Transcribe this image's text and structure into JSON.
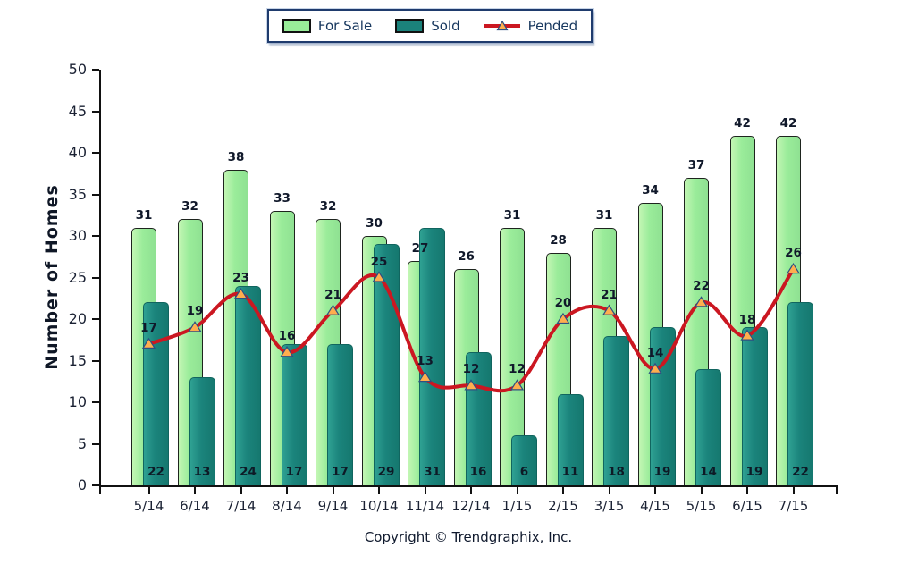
{
  "legend": {
    "items": [
      {
        "label": "For Sale",
        "swatch": "bar"
      },
      {
        "label": "Sold",
        "swatch": "bar"
      },
      {
        "label": "Pended",
        "swatch": "line"
      }
    ]
  },
  "chart_data": {
    "type": "combo",
    "title": "",
    "ylabel": "Number of Homes",
    "xlabel": "",
    "categories": [
      "5/14",
      "6/14",
      "7/14",
      "8/14",
      "9/14",
      "10/14",
      "11/14",
      "12/14",
      "1/15",
      "2/15",
      "3/15",
      "4/15",
      "5/15",
      "6/15",
      "7/15"
    ],
    "series": [
      {
        "name": "For Sale",
        "type": "bar",
        "color": "#99ED99",
        "values": [
          31,
          32,
          38,
          33,
          32,
          30,
          27,
          26,
          31,
          28,
          31,
          34,
          37,
          42,
          42
        ]
      },
      {
        "name": "Sold",
        "type": "bar",
        "color": "#1B827B",
        "values": [
          22,
          13,
          24,
          17,
          17,
          29,
          31,
          16,
          6,
          11,
          18,
          19,
          14,
          19,
          22
        ]
      },
      {
        "name": "Pended",
        "type": "line",
        "color": "#CB1721",
        "marker": "triangle",
        "marker_color": "#FFAE4E",
        "values": [
          17,
          19,
          23,
          16,
          21,
          25,
          13,
          12,
          12,
          20,
          21,
          14,
          22,
          18,
          26
        ]
      }
    ],
    "ylim": [
      0,
      50
    ],
    "yticks": [
      0,
      5,
      10,
      15,
      20,
      25,
      30,
      35,
      40,
      45,
      50
    ],
    "grid": false,
    "legend_position": "top-center"
  },
  "footer": {
    "copyright": "Copyright © Trendgraphix, Inc."
  }
}
